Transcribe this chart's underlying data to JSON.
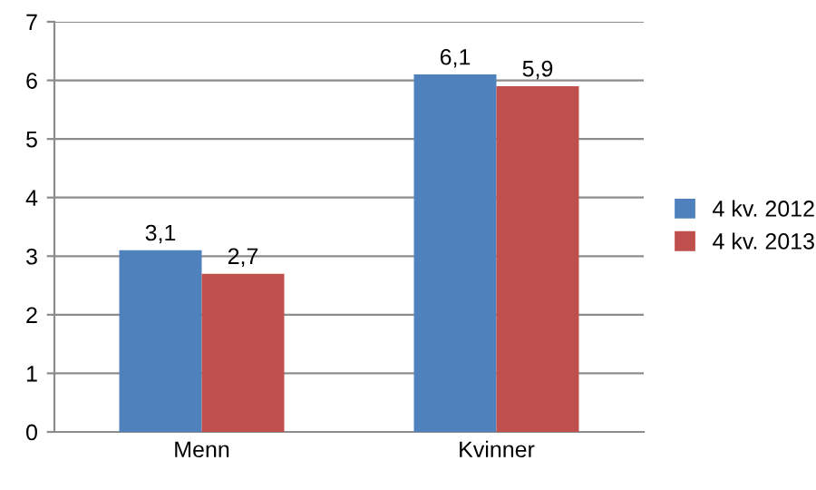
{
  "chart_data": {
    "type": "bar",
    "categories": [
      "Menn",
      "Kvinner"
    ],
    "series": [
      {
        "name": "4 kv. 2012",
        "color": "#4f81bd",
        "values": [
          3.1,
          6.1
        ],
        "value_labels": [
          "3,1",
          "6,1"
        ]
      },
      {
        "name": "4 kv. 2013",
        "color": "#c0504d",
        "values": [
          2.7,
          5.9
        ],
        "value_labels": [
          "2,7",
          "5,9"
        ]
      }
    ],
    "ylim": [
      0,
      7
    ],
    "yticks": [
      0,
      1,
      2,
      3,
      4,
      5,
      6,
      7
    ],
    "grid": "y",
    "legend": "right"
  }
}
